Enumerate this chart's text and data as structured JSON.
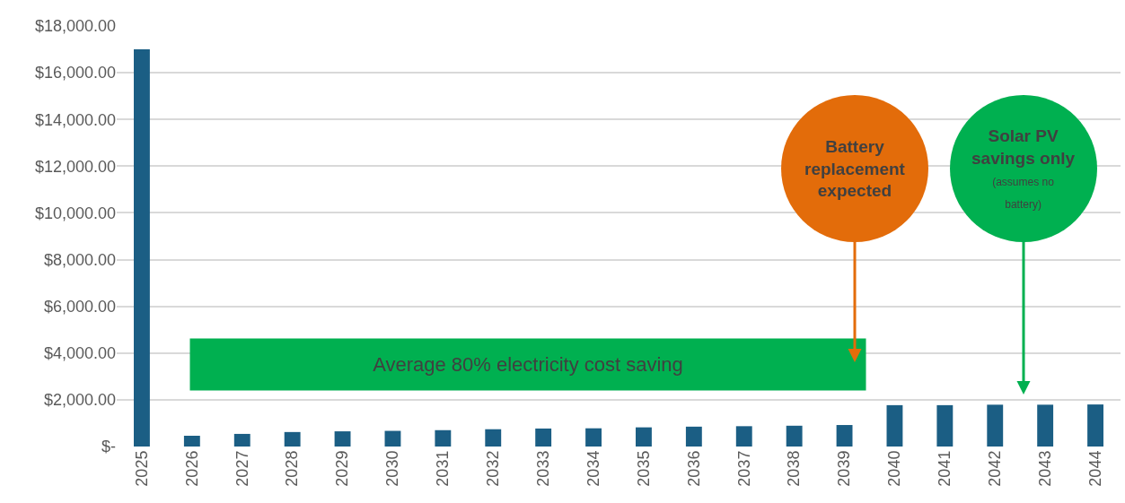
{
  "chart_data": {
    "type": "bar",
    "categories": [
      "2025",
      "2026",
      "2027",
      "2028",
      "2029",
      "2030",
      "2031",
      "2032",
      "2033",
      "2034",
      "2035",
      "2036",
      "2037",
      "2038",
      "2039",
      "2040",
      "2041",
      "2042",
      "2043",
      "2044"
    ],
    "values": [
      17000,
      460,
      540,
      620,
      650,
      670,
      700,
      740,
      770,
      780,
      820,
      850,
      870,
      890,
      920,
      1770,
      1770,
      1790,
      1790,
      1800
    ],
    "color": "#1b5e84",
    "ylim": [
      0,
      18000
    ],
    "yticks": [
      {
        "value": 0,
        "label": "$-"
      },
      {
        "value": 2000,
        "label": "$2,000.00"
      },
      {
        "value": 4000,
        "label": "$4,000.00"
      },
      {
        "value": 6000,
        "label": "$6,000.00"
      },
      {
        "value": 8000,
        "label": "$8,000.00"
      },
      {
        "value": 10000,
        "label": "$10,000.00"
      },
      {
        "value": 12000,
        "label": "$12,000.00"
      },
      {
        "value": 14000,
        "label": "$14,000.00"
      },
      {
        "value": 16000,
        "label": "$16,000.00"
      },
      {
        "value": 18000,
        "label": "$18,000.00"
      }
    ],
    "grid": "y",
    "annotations": [
      "Average 80% electricity cost saving",
      "Battery replacement expected",
      "Solar PV savings only",
      "(assumes no battery)"
    ]
  }
}
